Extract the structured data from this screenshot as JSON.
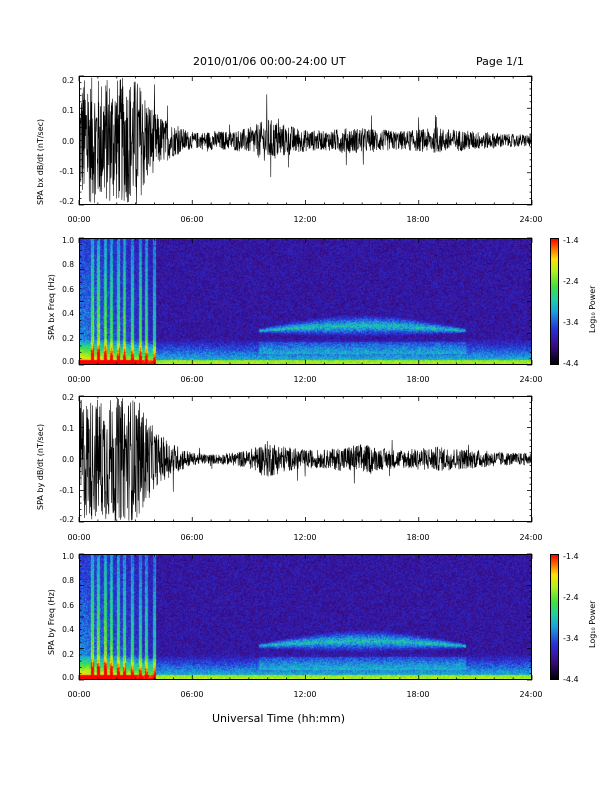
{
  "header": {
    "title": "2010/01/06  00:00-24:00 UT",
    "page": "Page 1/1"
  },
  "xaxis": {
    "label": "Universal Time (hh:mm)",
    "ticks": [
      "00:00",
      "06:00",
      "12:00",
      "18:00",
      "24:00"
    ]
  },
  "colorbar": {
    "label": "Log₁₀ Power",
    "ticks": [
      "-1.4",
      "-2.4",
      "-3.4",
      "-4.4"
    ],
    "range": [
      -4.4,
      -1.4
    ]
  },
  "chart_data": [
    {
      "type": "line",
      "ylabel": "SPA bx dB/dt (nT/sec)",
      "ylim": [
        -0.2,
        0.2
      ],
      "yticks": [
        "0.2",
        "0.1",
        "0.0",
        "-0.1",
        "-0.2"
      ],
      "xlim_hours": [
        0,
        24
      ],
      "envelope_hours": [
        0,
        0.5,
        1,
        1.5,
        2,
        2.5,
        3,
        3.5,
        4,
        5,
        6,
        7,
        8,
        9,
        10,
        11,
        12,
        13,
        14,
        15,
        16,
        17,
        18,
        19,
        20,
        21,
        22,
        23,
        24
      ],
      "envelope_amplitude": [
        0.2,
        0.2,
        0.2,
        0.2,
        0.2,
        0.2,
        0.2,
        0.15,
        0.09,
        0.05,
        0.025,
        0.03,
        0.03,
        0.04,
        0.07,
        0.05,
        0.035,
        0.03,
        0.04,
        0.04,
        0.035,
        0.03,
        0.035,
        0.04,
        0.035,
        0.03,
        0.025,
        0.02,
        0.02
      ]
    },
    {
      "type": "heatmap",
      "ylabel": "SPA bx Freq (Hz)",
      "ylim": [
        0.0,
        1.0
      ],
      "yticks": [
        "1.0",
        "0.8",
        "0.6",
        "0.4",
        "0.2",
        "0.0"
      ],
      "xlim_hours": [
        0,
        24
      ],
      "zlim": [
        -4.4,
        -1.4
      ],
      "features": "broadband bursts 00:00-04:00; enhanced band 0.2-0.35 Hz from 10:00 to 20:00"
    },
    {
      "type": "line",
      "ylabel": "SPA by dB/dt (nT/sec)",
      "ylim": [
        -0.2,
        0.2
      ],
      "yticks": [
        "0.2",
        "0.1",
        "0.0",
        "-0.1",
        "-0.2"
      ],
      "xlim_hours": [
        0,
        24
      ],
      "envelope_hours": [
        0,
        0.5,
        1,
        1.5,
        2,
        2.5,
        3,
        3.5,
        4,
        5,
        6,
        7,
        8,
        9,
        10,
        11,
        12,
        13,
        14,
        15,
        16,
        17,
        18,
        19,
        20,
        21,
        22,
        23,
        24
      ],
      "envelope_amplitude": [
        0.2,
        0.2,
        0.2,
        0.2,
        0.2,
        0.2,
        0.2,
        0.15,
        0.09,
        0.05,
        0.02,
        0.015,
        0.02,
        0.03,
        0.06,
        0.04,
        0.03,
        0.03,
        0.04,
        0.05,
        0.035,
        0.03,
        0.035,
        0.04,
        0.035,
        0.03,
        0.025,
        0.02,
        0.02
      ]
    },
    {
      "type": "heatmap",
      "ylabel": "SPA by Freq (Hz)",
      "ylim": [
        0.0,
        1.0
      ],
      "yticks": [
        "1.0",
        "0.8",
        "0.6",
        "0.4",
        "0.2",
        "0.0"
      ],
      "xlim_hours": [
        0,
        24
      ],
      "zlim": [
        -4.4,
        -1.4
      ],
      "features": "broadband bursts 00:00-04:00; enhanced band 0.2-0.35 Hz from 10:00 to 20:00"
    }
  ]
}
